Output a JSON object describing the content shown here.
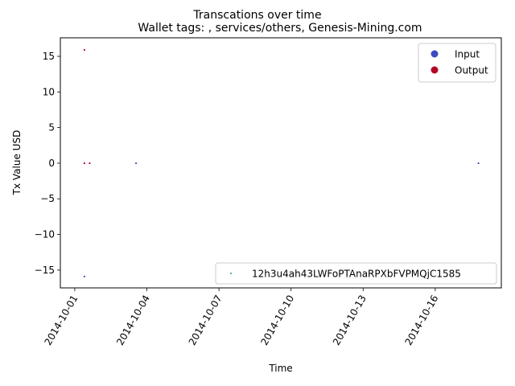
{
  "chart_data": {
    "type": "scatter",
    "suptitle": "Transcations over time",
    "title": "Wallet tags: , services/others, Genesis-Mining.com",
    "xlabel": "Time",
    "ylabel": "Tx Value USD",
    "x_ticks": [
      "2014-10-01",
      "2014-10-04",
      "2014-10-07",
      "2014-10-10",
      "2014-10-13",
      "2014-10-16"
    ],
    "x_tick_days": [
      1,
      4,
      7,
      10,
      13,
      16
    ],
    "xlim_days": [
      0.4,
      18.75
    ],
    "y_ticks": [
      15,
      10,
      5,
      0,
      -5,
      -10,
      -15
    ],
    "ylim": [
      -17.5,
      17.6
    ],
    "series": [
      {
        "name": "Input",
        "color": "#3b4cc0",
        "points": [
          {
            "day": 1.4,
            "value": -15.9
          },
          {
            "day": 3.55,
            "value": 0.0
          },
          {
            "day": 17.8,
            "value": 0.0
          }
        ]
      },
      {
        "name": "Output",
        "color": "#b40426",
        "points": [
          {
            "day": 1.4,
            "value": 15.9
          },
          {
            "day": 1.4,
            "value": 0.0
          },
          {
            "day": 1.62,
            "value": 0.0
          }
        ]
      }
    ],
    "legend_types": {
      "position": "top-right",
      "entries": [
        {
          "label": "Input",
          "color": "#3b4cc0"
        },
        {
          "label": "Output",
          "color": "#b40426"
        }
      ]
    },
    "legend_address": {
      "position": "bottom-right",
      "label": "12h3u4ah43LWFoPTAnaRPXbFVPMQjC1585",
      "color": "#1f9e89"
    }
  }
}
